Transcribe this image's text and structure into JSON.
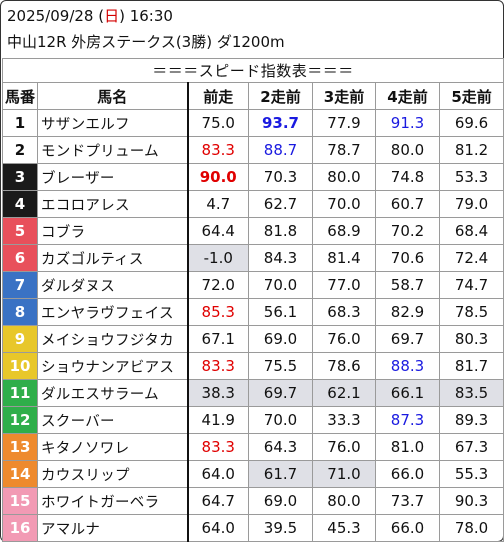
{
  "header": {
    "date_prefix": "2025/09/28 (",
    "day_of_week": "日",
    "date_suffix": ") 16:30",
    "race_info": "中山12R 外房ステークス(3勝) ダ1200m"
  },
  "table": {
    "title": "＝＝＝スピード指数表＝＝＝",
    "headers": [
      "馬番",
      "馬名",
      "前走",
      "2走前",
      "3走前",
      "4走前",
      "5走前"
    ],
    "rows": [
      {
        "num": "1",
        "num_bg": "#ffffff",
        "num_fg": "#111111",
        "name": "サザンエルフ",
        "cells": [
          {
            "v": "75.0"
          },
          {
            "v": "93.7",
            "color": "blue",
            "bold": true
          },
          {
            "v": "77.9"
          },
          {
            "v": "91.3",
            "color": "blue"
          },
          {
            "v": "69.6"
          }
        ]
      },
      {
        "num": "2",
        "num_bg": "#ffffff",
        "num_fg": "#111111",
        "name": "モンドプリューム",
        "cells": [
          {
            "v": "83.3",
            "color": "red"
          },
          {
            "v": "88.7",
            "color": "blue"
          },
          {
            "v": "78.7"
          },
          {
            "v": "80.0"
          },
          {
            "v": "81.2"
          }
        ]
      },
      {
        "num": "3",
        "num_bg": "#1a1a1a",
        "num_fg": "#ffffff",
        "name": "ブレーザー",
        "cells": [
          {
            "v": "90.0",
            "color": "red",
            "bold": true
          },
          {
            "v": "70.3"
          },
          {
            "v": "80.0"
          },
          {
            "v": "74.8"
          },
          {
            "v": "53.3"
          }
        ]
      },
      {
        "num": "4",
        "num_bg": "#1a1a1a",
        "num_fg": "#ffffff",
        "name": "エコロアレス",
        "cells": [
          {
            "v": "4.7"
          },
          {
            "v": "62.7"
          },
          {
            "v": "70.0"
          },
          {
            "v": "60.7"
          },
          {
            "v": "79.0"
          }
        ]
      },
      {
        "num": "5",
        "num_bg": "#e8505b",
        "num_fg": "#ffffff",
        "name": "コブラ",
        "cells": [
          {
            "v": "64.4"
          },
          {
            "v": "81.8"
          },
          {
            "v": "68.9"
          },
          {
            "v": "70.2"
          },
          {
            "v": "68.4"
          }
        ]
      },
      {
        "num": "6",
        "num_bg": "#e8505b",
        "num_fg": "#ffffff",
        "name": "カズゴルティス",
        "cells": [
          {
            "v": "-1.0",
            "shade": true
          },
          {
            "v": "84.3"
          },
          {
            "v": "81.4"
          },
          {
            "v": "70.6"
          },
          {
            "v": "72.4"
          }
        ]
      },
      {
        "num": "7",
        "num_bg": "#3a72c4",
        "num_fg": "#ffffff",
        "name": "ダルダヌス",
        "cells": [
          {
            "v": "72.0"
          },
          {
            "v": "70.0"
          },
          {
            "v": "77.0"
          },
          {
            "v": "58.7"
          },
          {
            "v": "74.7"
          }
        ]
      },
      {
        "num": "8",
        "num_bg": "#3a72c4",
        "num_fg": "#ffffff",
        "name": "エンヤラヴフェイス",
        "cells": [
          {
            "v": "85.3",
            "color": "red"
          },
          {
            "v": "56.1"
          },
          {
            "v": "68.3"
          },
          {
            "v": "82.9"
          },
          {
            "v": "78.5"
          }
        ]
      },
      {
        "num": "9",
        "num_bg": "#e8c72a",
        "num_fg": "#ffffff",
        "name": "メイショウフジタカ",
        "cells": [
          {
            "v": "67.1"
          },
          {
            "v": "69.0"
          },
          {
            "v": "76.0"
          },
          {
            "v": "69.7"
          },
          {
            "v": "80.3"
          }
        ]
      },
      {
        "num": "10",
        "num_bg": "#e8c72a",
        "num_fg": "#ffffff",
        "name": "ショウナンアビアス",
        "cells": [
          {
            "v": "83.3",
            "color": "red"
          },
          {
            "v": "75.5"
          },
          {
            "v": "78.6"
          },
          {
            "v": "88.3",
            "color": "blue"
          },
          {
            "v": "81.7"
          }
        ]
      },
      {
        "num": "11",
        "num_bg": "#2fae4a",
        "num_fg": "#ffffff",
        "name": "ダルエスサラーム",
        "cells": [
          {
            "v": "38.3",
            "shade": true
          },
          {
            "v": "69.7",
            "shade": true
          },
          {
            "v": "62.1",
            "shade": true
          },
          {
            "v": "66.1",
            "shade": true
          },
          {
            "v": "83.5",
            "shade": true
          }
        ]
      },
      {
        "num": "12",
        "num_bg": "#2fae4a",
        "num_fg": "#ffffff",
        "name": "スクーバー",
        "cells": [
          {
            "v": "41.9"
          },
          {
            "v": "70.0"
          },
          {
            "v": "33.3"
          },
          {
            "v": "87.3",
            "color": "blue"
          },
          {
            "v": "89.3"
          }
        ]
      },
      {
        "num": "13",
        "num_bg": "#ee8a2e",
        "num_fg": "#ffffff",
        "name": "キタノソワレ",
        "cells": [
          {
            "v": "83.3",
            "color": "red"
          },
          {
            "v": "64.3"
          },
          {
            "v": "76.0"
          },
          {
            "v": "81.0"
          },
          {
            "v": "67.3"
          }
        ]
      },
      {
        "num": "14",
        "num_bg": "#ee8a2e",
        "num_fg": "#ffffff",
        "name": "カウスリップ",
        "cells": [
          {
            "v": "64.0"
          },
          {
            "v": "61.7",
            "shade": true
          },
          {
            "v": "71.0",
            "shade": true
          },
          {
            "v": "66.0"
          },
          {
            "v": "55.3"
          }
        ]
      },
      {
        "num": "15",
        "num_bg": "#f29ab4",
        "num_fg": "#ffffff",
        "name": "ホワイトガーベラ",
        "cells": [
          {
            "v": "64.7"
          },
          {
            "v": "69.0"
          },
          {
            "v": "80.0"
          },
          {
            "v": "73.7"
          },
          {
            "v": "90.3"
          }
        ]
      },
      {
        "num": "16",
        "num_bg": "#f29ab4",
        "num_fg": "#ffffff",
        "name": "アマルナ",
        "cells": [
          {
            "v": "64.0"
          },
          {
            "v": "39.5"
          },
          {
            "v": "45.3"
          },
          {
            "v": "66.0"
          },
          {
            "v": "78.0"
          }
        ]
      }
    ]
  },
  "colors": {
    "red": "#e00000",
    "blue": "#1a1ae0",
    "shade": "#dfe0e6"
  }
}
